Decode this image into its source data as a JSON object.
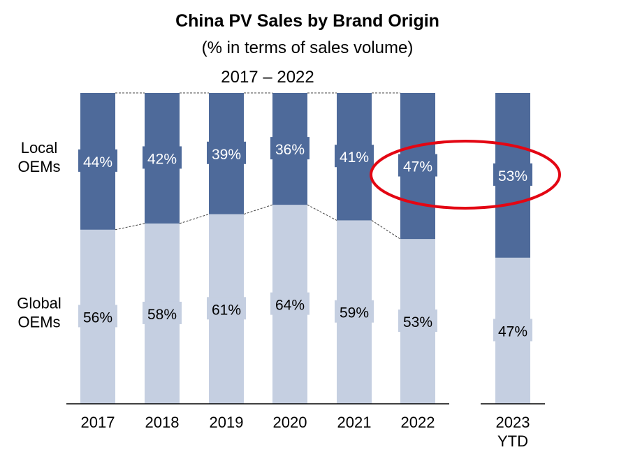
{
  "chart_data": {
    "type": "bar",
    "stacked": true,
    "percent_stacked": true,
    "title": "China PV Sales by Brand Origin",
    "subtitle": "(% in terms of sales volume)",
    "group_label": "2017 – 2022",
    "categories": [
      "2017",
      "2018",
      "2019",
      "2020",
      "2021",
      "2022",
      "2023 YTD"
    ],
    "category_lines": [
      [
        "2017"
      ],
      [
        "2018"
      ],
      [
        "2019"
      ],
      [
        "2020"
      ],
      [
        "2021"
      ],
      [
        "2022"
      ],
      [
        "2023",
        "YTD"
      ]
    ],
    "series": [
      {
        "name": "Global OEMs",
        "label_lines": [
          "Global",
          "OEMs"
        ],
        "values": [
          56,
          58,
          61,
          64,
          59,
          53,
          47
        ],
        "labels": [
          "56%",
          "58%",
          "61%",
          "64%",
          "59%",
          "53%",
          "47%"
        ],
        "color": "#c5cfe1",
        "text_color": "#000000"
      },
      {
        "name": "Local OEMs",
        "label_lines": [
          "Local",
          "OEMs"
        ],
        "values": [
          44,
          42,
          39,
          36,
          41,
          47,
          53
        ],
        "labels": [
          "44%",
          "42%",
          "39%",
          "36%",
          "41%",
          "47%",
          "53%"
        ],
        "color": "#4e6a9a",
        "text_color": "#ffffff"
      }
    ],
    "ylim": [
      0,
      100
    ],
    "grid": false,
    "legend": "left",
    "highlight": {
      "shape": "ellipse",
      "color": "#e30613",
      "categories": [
        "2022",
        "2023 YTD"
      ],
      "series": "Local OEMs"
    }
  }
}
